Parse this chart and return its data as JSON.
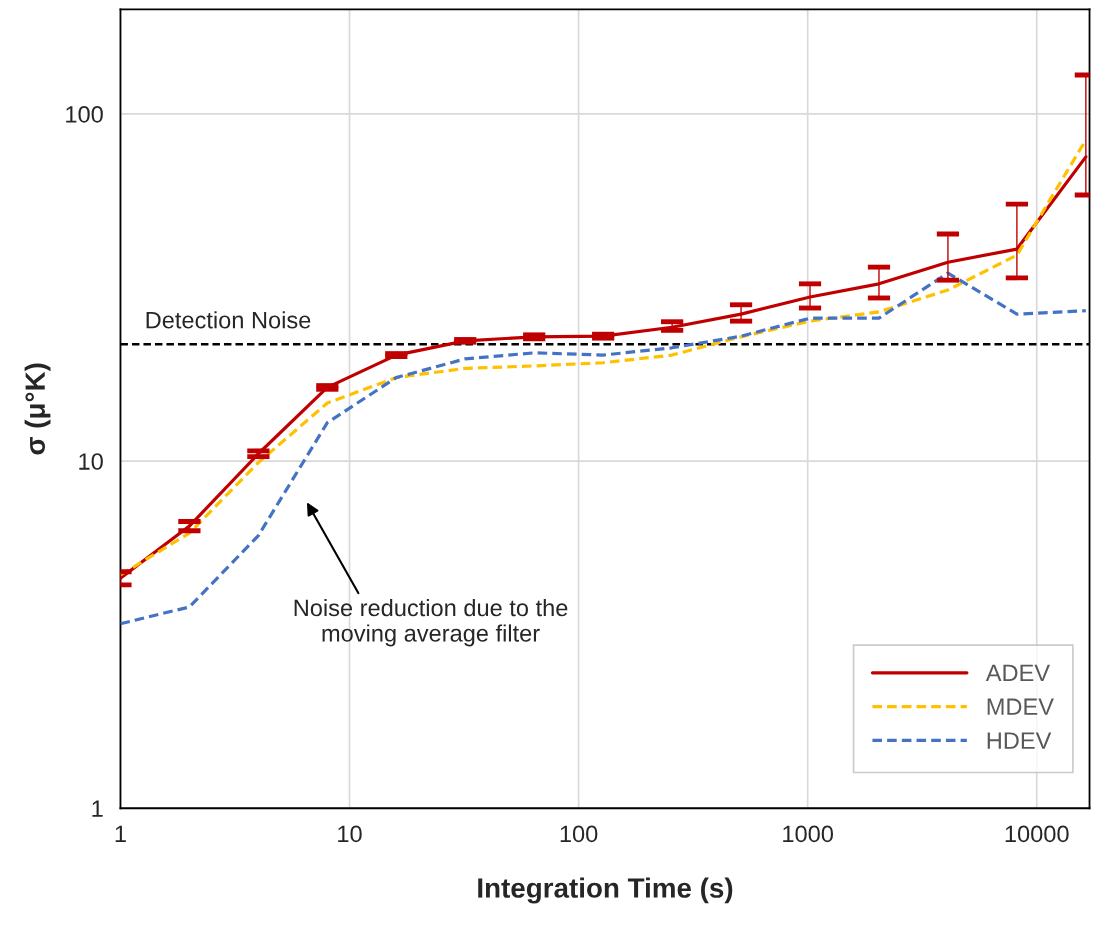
{
  "chart_data": {
    "type": "line",
    "xlabel": "Integration Time (s)",
    "ylabel": "σ (μ°K)",
    "log": "xy",
    "grid": true,
    "legend": "bottom right",
    "x": [
      1,
      2,
      4,
      8,
      16,
      32,
      64,
      128,
      256,
      512,
      1024,
      2048,
      4096,
      8192,
      16384
    ],
    "xlim": [
      1,
      17000
    ],
    "xticks": [
      1,
      10,
      100,
      1000,
      10000
    ],
    "ylim": [
      1,
      200
    ],
    "yticks": [
      1,
      10,
      100
    ],
    "series": [
      {
        "name": "ADEV",
        "color": "#c00000",
        "line_style": "solid",
        "values": [
          4.6,
          6.5,
          10.5,
          16.3,
          20.2,
          22.2,
          22.8,
          22.9,
          24.3,
          26.5,
          29.7,
          32.4,
          37.4,
          40.8,
          75.2
        ],
        "errors": [
          0.2,
          0.2,
          0.2,
          0.2,
          0.2,
          0.2,
          0.3,
          0.3,
          [
            23.8,
            25.2
          ],
          [
            25.3,
            28.2
          ],
          [
            27.6,
            32.4
          ],
          [
            29.5,
            36.2
          ],
          [
            33.2,
            45.1
          ],
          [
            33.7,
            55.0
          ],
          [
            58.4,
            129.5
          ]
        ]
      },
      {
        "name": "MDEV",
        "color": "#ffc000",
        "line_style": "dashed",
        "values": [
          4.7,
          6.2,
          9.9,
          14.7,
          17.4,
          18.5,
          18.8,
          19.2,
          20.2,
          22.8,
          25.3,
          26.9,
          31.1,
          39.2,
          84.2
        ]
      },
      {
        "name": "HDEV",
        "color": "#4472c4",
        "line_style": "dashed",
        "values": [
          3.4,
          3.8,
          6.1,
          12.9,
          17.4,
          19.7,
          20.5,
          20.2,
          21.2,
          22.9,
          25.8,
          25.8,
          34.8,
          26.5,
          27.1
        ]
      }
    ],
    "ref_lines": [
      {
        "axis": "y",
        "value": 21.7,
        "label": "Detection Noise",
        "color": "#000000",
        "line_style": "dashed"
      }
    ],
    "annotations": [
      "Noise reduction due to the\nmoving average filter"
    ]
  }
}
